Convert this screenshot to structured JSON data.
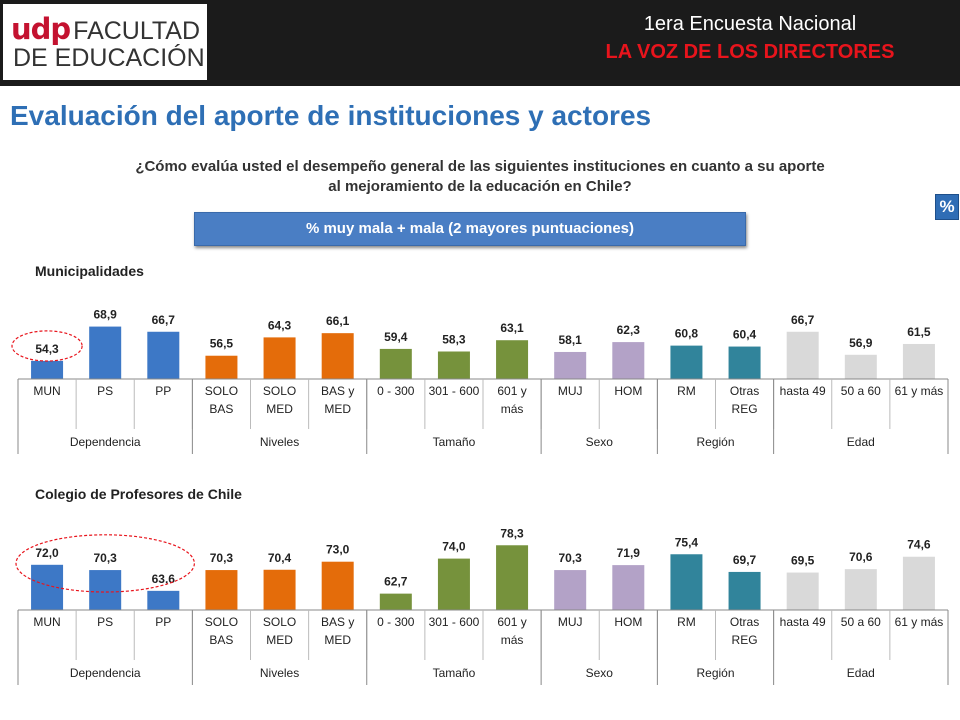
{
  "header": {
    "logo_udp": "udp",
    "logo_line1": "FACULTAD",
    "logo_line2": "DE EDUCACIÓN",
    "survey_title": "1era Encuesta Nacional",
    "survey_subtitle": "LA VOZ DE LOS DIRECTORES"
  },
  "page_title": "Evaluación del aporte de instituciones y actores",
  "question": "¿Cómo evalúa usted el desempeño general de las siguientes instituciones en cuanto a su aporte al mejoramiento de la educación en Chile?",
  "measure_label": "% muy mala + mala (2 mayores puntuaciones)",
  "percent_badge": "%",
  "colors": {
    "Dependencia": "#3d78c6",
    "Niveles": "#e46c0a",
    "Tamaño": "#76923c",
    "Sexo": "#b3a2c7",
    "Región": "#31849b",
    "Edad": "#d9d9d9",
    "circle": "#e8141c"
  },
  "chart_data": [
    {
      "type": "bar",
      "title": "Municipalidades",
      "categories": [
        "MUN",
        "PS",
        "PP",
        "SOLO BAS",
        "SOLO MED",
        "BAS y MED",
        "0 - 300",
        "301 - 600",
        "601 y más",
        "MUJ",
        "HOM",
        "RM",
        "Otras REG",
        "hasta 49",
        "50 a 60",
        "61 y más"
      ],
      "groups": [
        {
          "name": "Dependencia",
          "count": 3
        },
        {
          "name": "Niveles",
          "count": 3
        },
        {
          "name": "Tamaño",
          "count": 3
        },
        {
          "name": "Sexo",
          "count": 2
        },
        {
          "name": "Región",
          "count": 2
        },
        {
          "name": "Edad",
          "count": 3
        }
      ],
      "values": [
        54.3,
        68.9,
        66.7,
        56.5,
        64.3,
        66.1,
        59.4,
        58.3,
        63.1,
        58.1,
        62.3,
        60.8,
        60.4,
        66.7,
        56.9,
        61.5
      ],
      "value_labels": [
        "54,3",
        "68,9",
        "66,7",
        "56,5",
        "64,3",
        "66,1",
        "59,4",
        "58,3",
        "63,1",
        "58,1",
        "62,3",
        "60,8",
        "60,4",
        "66,7",
        "56,9",
        "61,5"
      ],
      "highlight_start": 0,
      "highlight_count": 1
    },
    {
      "type": "bar",
      "title": "Colegio de Profesores de Chile",
      "categories": [
        "MUN",
        "PS",
        "PP",
        "SOLO BAS",
        "SOLO MED",
        "BAS y MED",
        "0 - 300",
        "301 - 600",
        "601 y más",
        "MUJ",
        "HOM",
        "RM",
        "Otras REG",
        "hasta 49",
        "50 a 60",
        "61 y más"
      ],
      "groups": [
        {
          "name": "Dependencia",
          "count": 3
        },
        {
          "name": "Niveles",
          "count": 3
        },
        {
          "name": "Tamaño",
          "count": 3
        },
        {
          "name": "Sexo",
          "count": 2
        },
        {
          "name": "Región",
          "count": 2
        },
        {
          "name": "Edad",
          "count": 3
        }
      ],
      "values": [
        72.0,
        70.3,
        63.6,
        70.3,
        70.4,
        73.0,
        62.7,
        74.0,
        78.3,
        70.3,
        71.9,
        75.4,
        69.7,
        69.5,
        70.6,
        74.6
      ],
      "value_labels": [
        "72,0",
        "70,3",
        "63,6",
        "70,3",
        "70,4",
        "73,0",
        "62,7",
        "74,0",
        "78,3",
        "70,3",
        "71,9",
        "75,4",
        "69,7",
        "69,5",
        "70,6",
        "74,6"
      ],
      "highlight_start": 0,
      "highlight_count": 3
    }
  ]
}
